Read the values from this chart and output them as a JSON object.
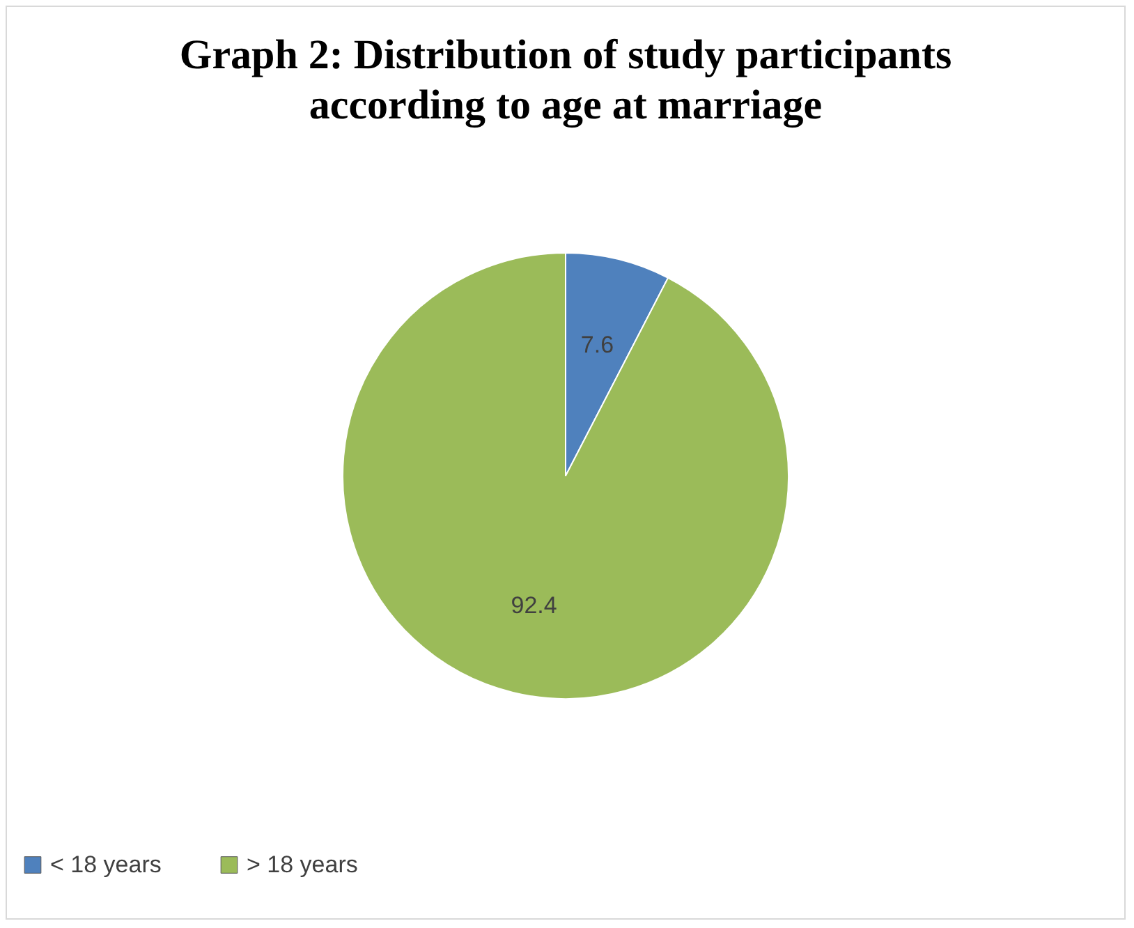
{
  "chart_data": {
    "type": "pie",
    "title": "Graph 2: Distribution of study participants according to age at marriage",
    "categories": [
      "< 18 years",
      "> 18 years"
    ],
    "values": [
      7.6,
      92.4
    ],
    "colors": [
      "#4f81bd",
      "#9bbb59"
    ],
    "data_labels": true,
    "legend": "bottom"
  }
}
